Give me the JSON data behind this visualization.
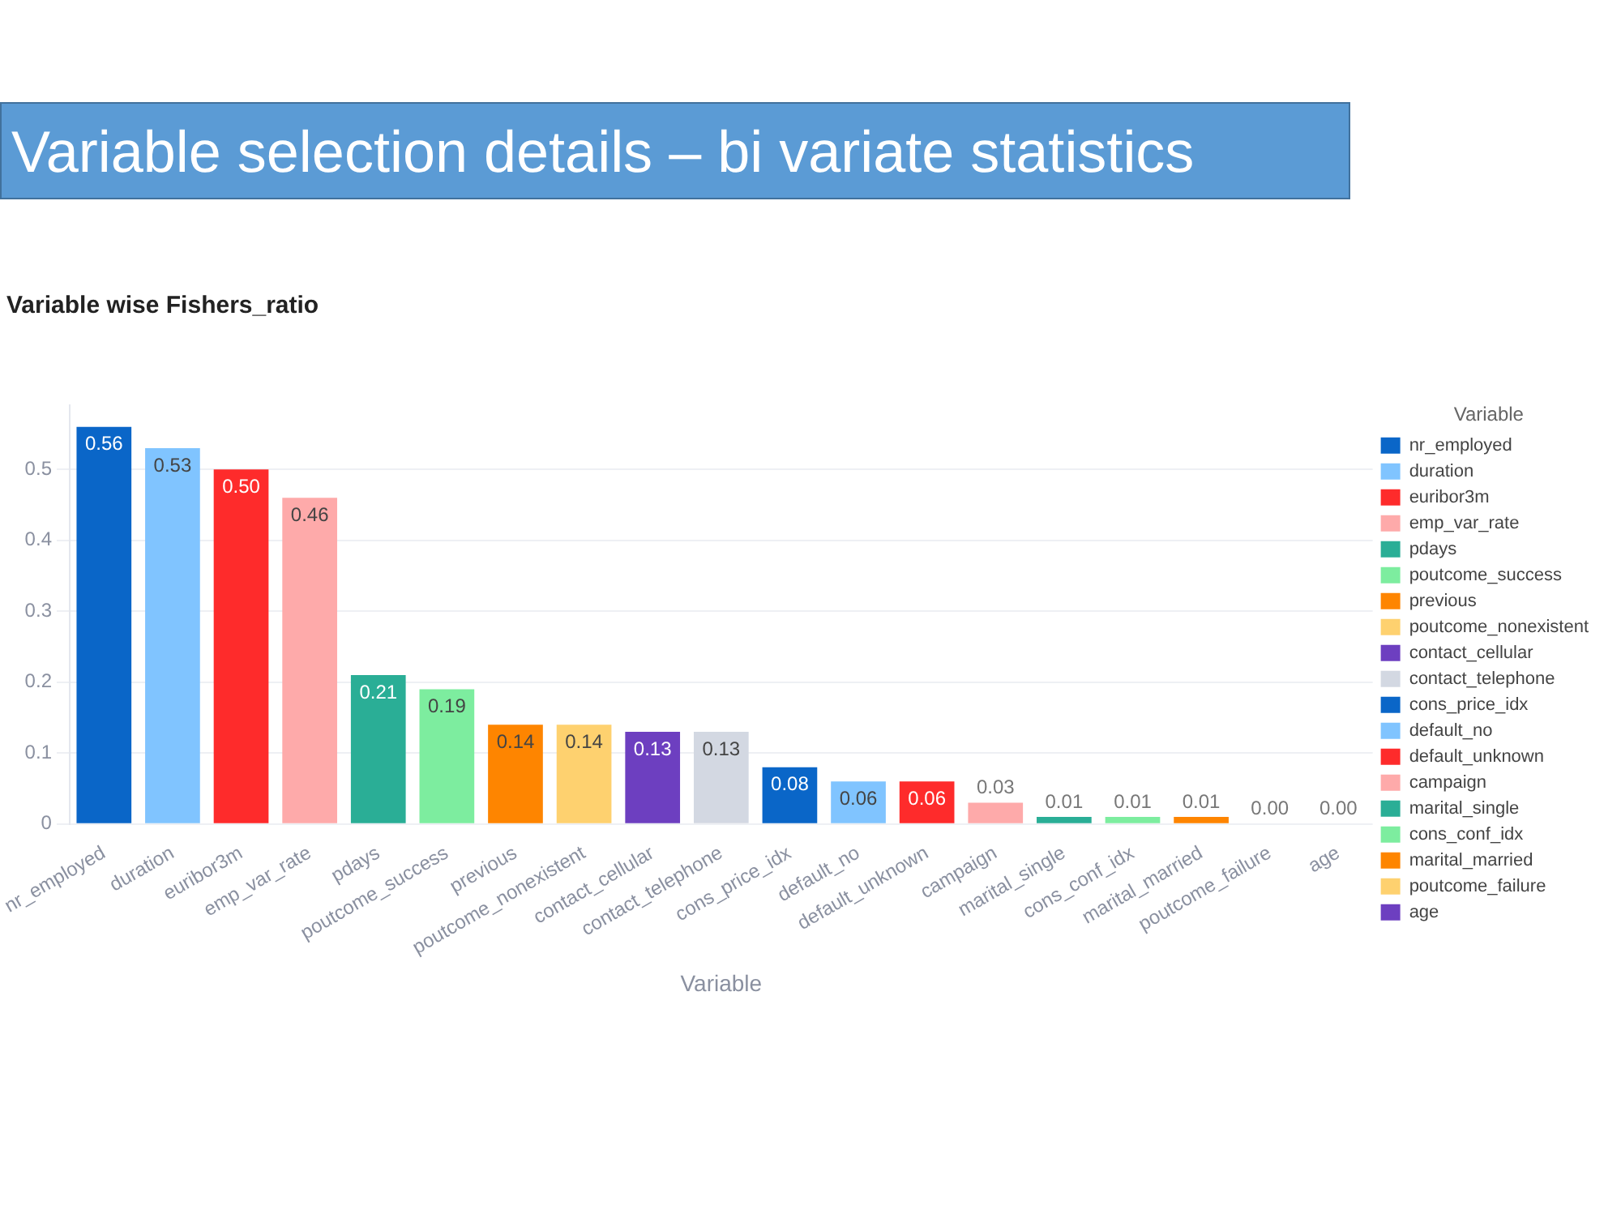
{
  "chart_data": {
    "type": "bar",
    "title": "Variable selection details – bi variate statistics",
    "subtitle": "Variable wise Fishers_ratio",
    "xlabel": "Variable",
    "legend_title": "Variable",
    "legend": "right",
    "grid": "y",
    "categories": [
      "nr_employed",
      "duration",
      "euribor3m",
      "emp_var_rate",
      "pdays",
      "poutcome_success",
      "previous",
      "poutcome_nonexistent",
      "contact_cellular",
      "contact_telephone",
      "cons_price_idx",
      "default_no",
      "default_unknown",
      "campaign",
      "marital_single",
      "cons_conf_idx",
      "marital_married",
      "poutcome_failure",
      "age"
    ],
    "series": [
      {
        "name": "nr_employed",
        "color": "#0a66c8",
        "values": [
          0.56,
          null,
          null,
          null,
          null,
          null,
          null,
          null,
          null,
          null,
          null,
          null,
          null,
          null,
          null,
          null,
          null,
          null,
          null
        ],
        "value_labels": [
          "0.56",
          null,
          null,
          null,
          null,
          null,
          null,
          null,
          null,
          null,
          null,
          null,
          null,
          null,
          null,
          null,
          null,
          null,
          null
        ]
      },
      {
        "name": "duration",
        "color": "#80c4ff",
        "values": [
          null,
          0.53,
          null,
          null,
          null,
          null,
          null,
          null,
          null,
          null,
          null,
          null,
          null,
          null,
          null,
          null,
          null,
          null,
          null
        ],
        "value_labels": [
          null,
          "0.53",
          null,
          null,
          null,
          null,
          null,
          null,
          null,
          null,
          null,
          null,
          null,
          null,
          null,
          null,
          null,
          null,
          null
        ]
      },
      {
        "name": "euribor3m",
        "color": "#fe2b2b",
        "values": [
          null,
          null,
          0.5,
          null,
          null,
          null,
          null,
          null,
          null,
          null,
          null,
          null,
          null,
          null,
          null,
          null,
          null,
          null,
          null
        ],
        "value_labels": [
          null,
          null,
          "0.50",
          null,
          null,
          null,
          null,
          null,
          null,
          null,
          null,
          null,
          null,
          null,
          null,
          null,
          null,
          null,
          null
        ]
      },
      {
        "name": "emp_var_rate",
        "color": "#feaaaa",
        "values": [
          null,
          null,
          null,
          0.46,
          null,
          null,
          null,
          null,
          null,
          null,
          null,
          null,
          null,
          null,
          null,
          null,
          null,
          null,
          null
        ],
        "value_labels": [
          null,
          null,
          null,
          "0.46",
          null,
          null,
          null,
          null,
          null,
          null,
          null,
          null,
          null,
          null,
          null,
          null,
          null,
          null,
          null
        ]
      },
      {
        "name": "pdays",
        "color": "#2aae96",
        "values": [
          null,
          null,
          null,
          null,
          0.21,
          null,
          null,
          null,
          null,
          null,
          null,
          null,
          null,
          null,
          null,
          null,
          null,
          null,
          null
        ],
        "value_labels": [
          null,
          null,
          null,
          null,
          "0.21",
          null,
          null,
          null,
          null,
          null,
          null,
          null,
          null,
          null,
          null,
          null,
          null,
          null,
          null
        ]
      },
      {
        "name": "poutcome_success",
        "color": "#7ded9f",
        "values": [
          null,
          null,
          null,
          null,
          null,
          0.19,
          null,
          null,
          null,
          null,
          null,
          null,
          null,
          null,
          null,
          null,
          null,
          null,
          null
        ],
        "value_labels": [
          null,
          null,
          null,
          null,
          null,
          "0.19",
          null,
          null,
          null,
          null,
          null,
          null,
          null,
          null,
          null,
          null,
          null,
          null,
          null
        ]
      },
      {
        "name": "previous",
        "color": "#fe8500",
        "values": [
          null,
          null,
          null,
          null,
          null,
          null,
          0.14,
          null,
          null,
          null,
          null,
          null,
          null,
          null,
          null,
          null,
          null,
          null,
          null
        ],
        "value_labels": [
          null,
          null,
          null,
          null,
          null,
          null,
          "0.14",
          null,
          null,
          null,
          null,
          null,
          null,
          null,
          null,
          null,
          null,
          null,
          null
        ]
      },
      {
        "name": "poutcome_nonexistent",
        "color": "#fed16f",
        "values": [
          null,
          null,
          null,
          null,
          null,
          null,
          null,
          0.14,
          null,
          null,
          null,
          null,
          null,
          null,
          null,
          null,
          null,
          null,
          null
        ],
        "value_labels": [
          null,
          null,
          null,
          null,
          null,
          null,
          null,
          "0.14",
          null,
          null,
          null,
          null,
          null,
          null,
          null,
          null,
          null,
          null,
          null
        ]
      },
      {
        "name": "contact_cellular",
        "color": "#6d3fc0",
        "values": [
          null,
          null,
          null,
          null,
          null,
          null,
          null,
          null,
          0.13,
          null,
          null,
          null,
          null,
          null,
          null,
          null,
          null,
          null,
          null
        ],
        "value_labels": [
          null,
          null,
          null,
          null,
          null,
          null,
          null,
          null,
          "0.13",
          null,
          null,
          null,
          null,
          null,
          null,
          null,
          null,
          null,
          null
        ]
      },
      {
        "name": "contact_telephone",
        "color": "#d3d8e2",
        "values": [
          null,
          null,
          null,
          null,
          null,
          null,
          null,
          null,
          null,
          0.13,
          null,
          null,
          null,
          null,
          null,
          null,
          null,
          null,
          null
        ],
        "value_labels": [
          null,
          null,
          null,
          null,
          null,
          null,
          null,
          null,
          null,
          "0.13",
          null,
          null,
          null,
          null,
          null,
          null,
          null,
          null,
          null
        ]
      },
      {
        "name": "cons_price_idx",
        "color": "#0a66c8",
        "values": [
          null,
          null,
          null,
          null,
          null,
          null,
          null,
          null,
          null,
          null,
          0.08,
          null,
          null,
          null,
          null,
          null,
          null,
          null,
          null
        ],
        "value_labels": [
          null,
          null,
          null,
          null,
          null,
          null,
          null,
          null,
          null,
          null,
          "0.08",
          null,
          null,
          null,
          null,
          null,
          null,
          null,
          null
        ]
      },
      {
        "name": "default_no",
        "color": "#80c4ff",
        "values": [
          null,
          null,
          null,
          null,
          null,
          null,
          null,
          null,
          null,
          null,
          null,
          0.06,
          null,
          null,
          null,
          null,
          null,
          null,
          null
        ],
        "value_labels": [
          null,
          null,
          null,
          null,
          null,
          null,
          null,
          null,
          null,
          null,
          null,
          "0.06",
          null,
          null,
          null,
          null,
          null,
          null,
          null
        ]
      },
      {
        "name": "default_unknown",
        "color": "#fe2b2b",
        "values": [
          null,
          null,
          null,
          null,
          null,
          null,
          null,
          null,
          null,
          null,
          null,
          null,
          0.06,
          null,
          null,
          null,
          null,
          null,
          null
        ],
        "value_labels": [
          null,
          null,
          null,
          null,
          null,
          null,
          null,
          null,
          null,
          null,
          null,
          null,
          "0.06",
          null,
          null,
          null,
          null,
          null,
          null
        ]
      },
      {
        "name": "campaign",
        "color": "#feaaaa",
        "values": [
          null,
          null,
          null,
          null,
          null,
          null,
          null,
          null,
          null,
          null,
          null,
          null,
          null,
          0.03,
          null,
          null,
          null,
          null,
          null
        ],
        "value_labels": [
          null,
          null,
          null,
          null,
          null,
          null,
          null,
          null,
          null,
          null,
          null,
          null,
          null,
          "0.03",
          null,
          null,
          null,
          null,
          null
        ]
      },
      {
        "name": "marital_single",
        "color": "#2aae96",
        "values": [
          null,
          null,
          null,
          null,
          null,
          null,
          null,
          null,
          null,
          null,
          null,
          null,
          null,
          null,
          0.01,
          null,
          null,
          null,
          null
        ],
        "value_labels": [
          null,
          null,
          null,
          null,
          null,
          null,
          null,
          null,
          null,
          null,
          null,
          null,
          null,
          null,
          "0.01",
          null,
          null,
          null,
          null
        ]
      },
      {
        "name": "cons_conf_idx",
        "color": "#7ded9f",
        "values": [
          null,
          null,
          null,
          null,
          null,
          null,
          null,
          null,
          null,
          null,
          null,
          null,
          null,
          null,
          null,
          0.01,
          null,
          null,
          null
        ],
        "value_labels": [
          null,
          null,
          null,
          null,
          null,
          null,
          null,
          null,
          null,
          null,
          null,
          null,
          null,
          null,
          null,
          "0.01",
          null,
          null,
          null
        ]
      },
      {
        "name": "marital_married",
        "color": "#fe8500",
        "values": [
          null,
          null,
          null,
          null,
          null,
          null,
          null,
          null,
          null,
          null,
          null,
          null,
          null,
          null,
          null,
          null,
          0.01,
          null,
          null
        ],
        "value_labels": [
          null,
          null,
          null,
          null,
          null,
          null,
          null,
          null,
          null,
          null,
          null,
          null,
          null,
          null,
          null,
          null,
          "0.01",
          null,
          null
        ]
      },
      {
        "name": "poutcome_failure",
        "color": "#fed16f",
        "values": [
          null,
          null,
          null,
          null,
          null,
          null,
          null,
          null,
          null,
          null,
          null,
          null,
          null,
          null,
          null,
          null,
          null,
          0.0,
          null
        ],
        "value_labels": [
          null,
          null,
          null,
          null,
          null,
          null,
          null,
          null,
          null,
          null,
          null,
          null,
          null,
          null,
          null,
          null,
          null,
          "0.00",
          null
        ]
      },
      {
        "name": "age",
        "color": "#6d3fc0",
        "values": [
          null,
          null,
          null,
          null,
          null,
          null,
          null,
          null,
          null,
          null,
          null,
          null,
          null,
          null,
          null,
          null,
          null,
          null,
          0.0
        ],
        "value_labels": [
          null,
          null,
          null,
          null,
          null,
          null,
          null,
          null,
          null,
          null,
          null,
          null,
          null,
          null,
          null,
          null,
          null,
          null,
          "0.00"
        ]
      }
    ],
    "ylim": [
      0,
      0.59
    ],
    "yticks": [
      0,
      0.1,
      0.2,
      0.3,
      0.4,
      0.5
    ]
  }
}
